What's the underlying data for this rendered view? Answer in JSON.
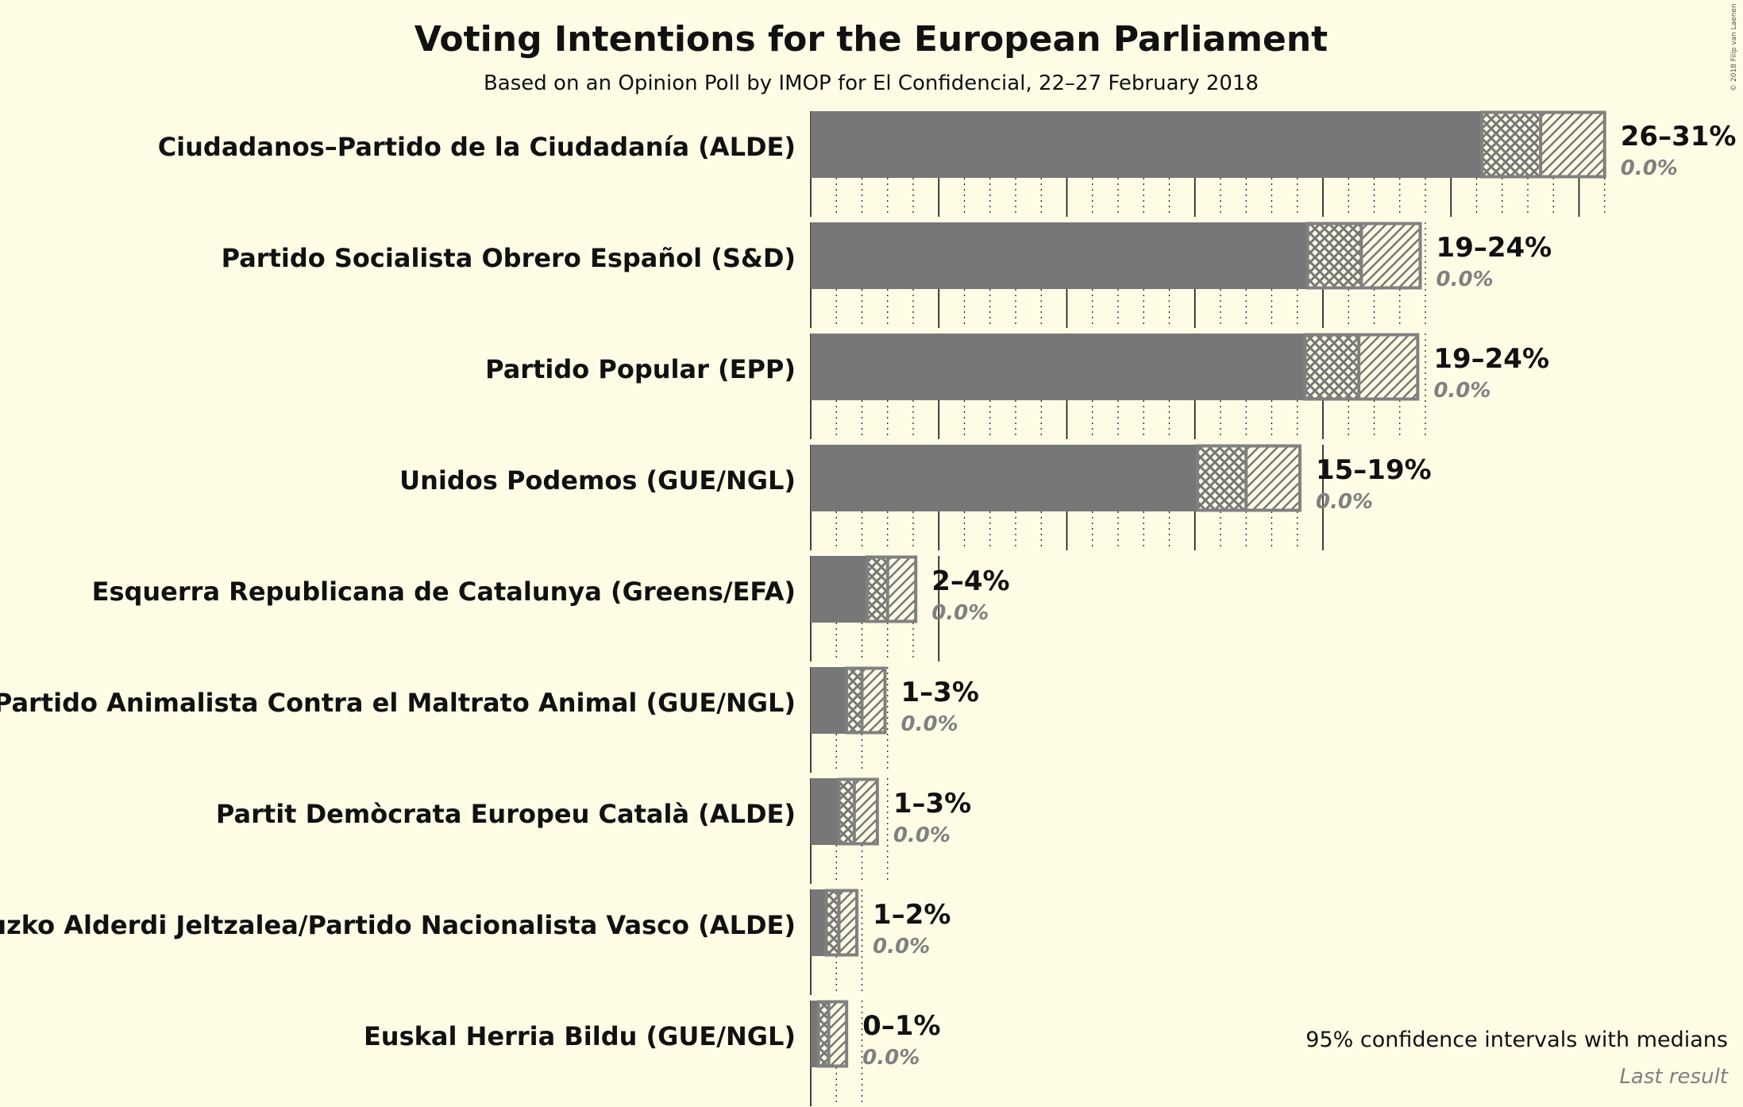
{
  "title": "Voting Intentions for the European Parliament",
  "subtitle": "Based on an Opinion Poll by IMOP for El Confidencial, 22–27 February 2018",
  "legend": {
    "ci_note": "95% confidence intervals with medians",
    "last_result": "Last result"
  },
  "copyright": "© 2018 Filip van Laenen",
  "colors": {
    "background": "#fffce6",
    "bar": "#777777",
    "outline": "#808080",
    "text": "#111111"
  },
  "chart_data": {
    "type": "bar",
    "orientation": "horizontal",
    "title": "Voting Intentions for the European Parliament",
    "subtitle": "Based on an Opinion Poll by IMOP for El Confidencial, 22–27 February 2018",
    "unit": "%",
    "xlim": [
      0,
      31
    ],
    "grid": true,
    "series": [
      {
        "party": "Ciudadanos–Partido de la Ciudadanía (ALDE)",
        "ci_label": "26–31%",
        "last_label": "0.0%",
        "ci_low": 26.2,
        "median": 28.5,
        "ci_high": 31.0,
        "last_result": 0.0
      },
      {
        "party": "Partido Socialista Obrero Español (S&D)",
        "ci_label": "19–24%",
        "last_label": "0.0%",
        "ci_low": 19.4,
        "median": 21.5,
        "ci_high": 23.8,
        "last_result": 0.0
      },
      {
        "party": "Partido Popular (EPP)",
        "ci_label": "19–24%",
        "last_label": "0.0%",
        "ci_low": 19.3,
        "median": 21.4,
        "ci_high": 23.7,
        "last_result": 0.0
      },
      {
        "party": "Unidos Podemos (GUE/NGL)",
        "ci_label": "15–19%",
        "last_label": "0.0%",
        "ci_low": 15.1,
        "median": 17.0,
        "ci_high": 19.1,
        "last_result": 0.0
      },
      {
        "party": "Esquerra Republicana de Catalunya (Greens/EFA)",
        "ci_label": "2–4%",
        "last_label": "0.0%",
        "ci_low": 2.2,
        "median": 3.0,
        "ci_high": 4.1,
        "last_result": 0.0
      },
      {
        "party": "Partido Animalista Contra el Maltrato Animal (GUE/NGL)",
        "ci_label": "1–3%",
        "last_label": "0.0%",
        "ci_low": 1.4,
        "median": 2.0,
        "ci_high": 2.9,
        "last_result": 0.0
      },
      {
        "party": "Partit Demòcrata Europeu Català (ALDE)",
        "ci_label": "1–3%",
        "last_label": "0.0%",
        "ci_low": 1.1,
        "median": 1.7,
        "ci_high": 2.6,
        "last_result": 0.0
      },
      {
        "party": "Euzko Alderdi Jeltzalea/Partido Nacionalista Vasco (ALDE)",
        "ci_label": "1–2%",
        "last_label": "0.0%",
        "ci_low": 0.6,
        "median": 1.1,
        "ci_high": 1.8,
        "last_result": 0.0
      },
      {
        "party": "Euskal Herria Bildu (GUE/NGL)",
        "ci_label": "0–1%",
        "last_label": "0.0%",
        "ci_low": 0.3,
        "median": 0.7,
        "ci_high": 1.4,
        "last_result": 0.0
      }
    ]
  }
}
